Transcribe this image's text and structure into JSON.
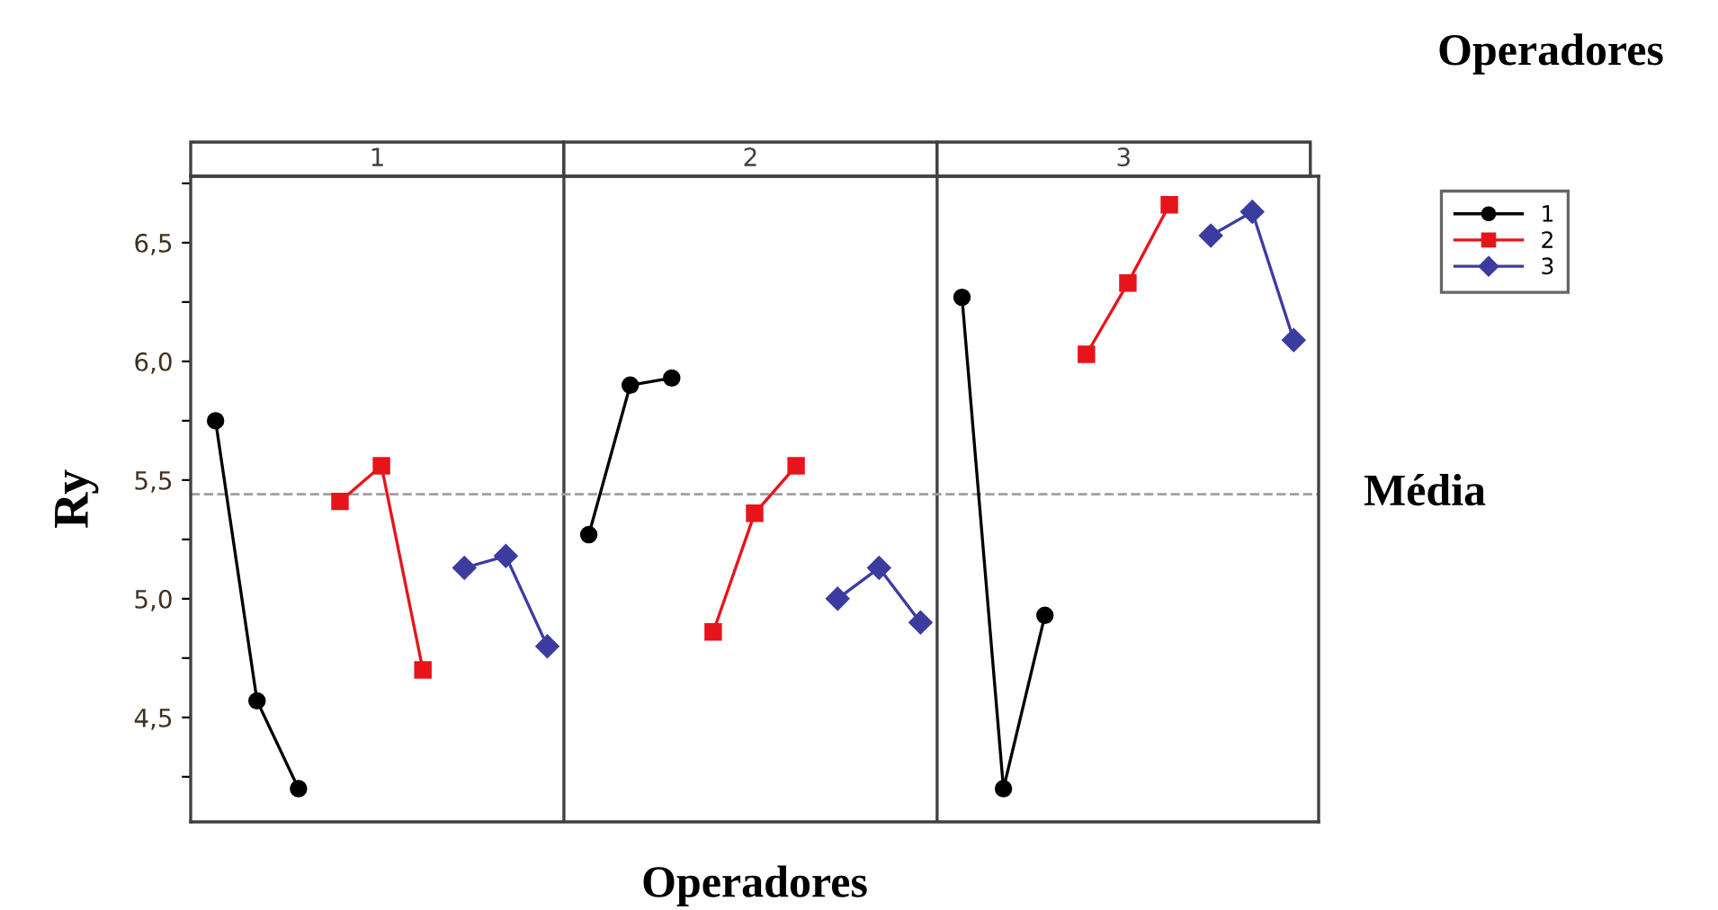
{
  "chart_data": {
    "type": "line",
    "xlabel": "Operadores",
    "ylabel": "Ry",
    "legend_title": "Operadores",
    "annotations": [
      "1",
      "2",
      "3"
    ],
    "categories": [
      null,
      null,
      null,
      null,
      null,
      null,
      null,
      null,
      null,
      null,
      null,
      null,
      null,
      null,
      null,
      null,
      null,
      null,
      null,
      null,
      null,
      null,
      null,
      null,
      null,
      null,
      null
    ],
    "ylim": [
      4.06,
      6.78
    ],
    "yticks": [
      {
        "value": 4.25,
        "label": null
      },
      {
        "value": 4.5,
        "label": "4,5"
      },
      {
        "value": 4.75,
        "label": null
      },
      {
        "value": 5.0,
        "label": "5,0"
      },
      {
        "value": 5.25,
        "label": null
      },
      {
        "value": 5.5,
        "label": "5,5"
      },
      {
        "value": 5.75,
        "label": null
      },
      {
        "value": 6.0,
        "label": "6,0"
      },
      {
        "value": 6.25,
        "label": null
      },
      {
        "value": 6.5,
        "label": "6,5"
      },
      {
        "value": 6.75,
        "label": null
      }
    ],
    "grid": false,
    "legend": "top right",
    "series": [
      {
        "name": "1",
        "color": "#000000",
        "marker": "circle",
        "values": [
          5.75,
          4.57,
          4.2,
          null,
          null,
          null,
          null,
          null,
          null,
          5.27,
          5.9,
          5.93,
          null,
          null,
          null,
          null,
          null,
          null,
          6.27,
          4.2,
          4.93,
          null,
          null,
          null,
          null,
          null,
          null
        ]
      },
      {
        "name": "2",
        "color": "#e8141c",
        "marker": "square",
        "values": [
          null,
          null,
          null,
          5.41,
          5.56,
          4.7,
          null,
          null,
          null,
          null,
          null,
          null,
          4.86,
          5.36,
          5.56,
          null,
          null,
          null,
          null,
          null,
          null,
          6.03,
          6.33,
          6.66,
          null,
          null,
          null
        ]
      },
      {
        "name": "3",
        "color": "#3c3ca0",
        "marker": "diamond",
        "values": [
          null,
          null,
          null,
          null,
          null,
          null,
          5.13,
          5.18,
          4.8,
          null,
          null,
          null,
          null,
          null,
          null,
          5.0,
          5.13,
          4.9,
          null,
          null,
          null,
          null,
          null,
          null,
          6.53,
          6.63,
          6.09
        ]
      }
    ],
    "ref_lines": [
      {
        "axis": "y",
        "value": 5.44,
        "label": "Média",
        "color": "#a0a0a0",
        "line_style": "dashed"
      }
    ]
  }
}
